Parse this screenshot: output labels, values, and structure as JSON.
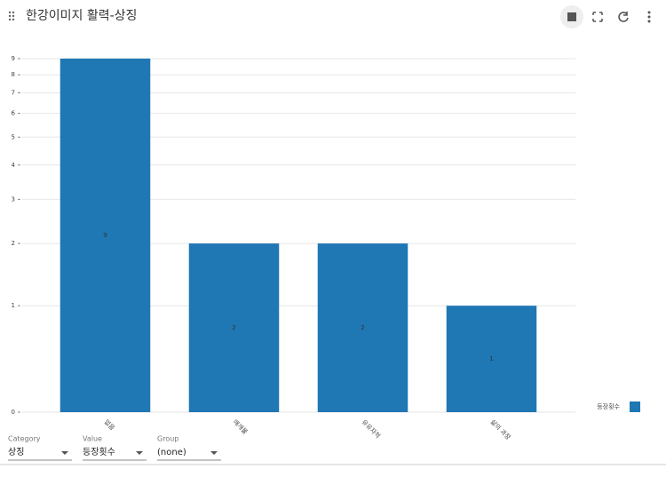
{
  "header": {
    "title": "한강이미지 활력-상징"
  },
  "chart_data": {
    "type": "bar",
    "categories": [
      "없음",
      "매개물",
      "유유자적",
      "삶의 과정"
    ],
    "series": [
      {
        "name": "등장횟수",
        "color": "#1f77b4",
        "values": [
          9,
          2,
          2,
          1
        ]
      }
    ],
    "ylim": [
      0,
      9
    ],
    "yticks": [
      0,
      1,
      2,
      3,
      4,
      5,
      6,
      7,
      8,
      9
    ],
    "yscale": "symlog",
    "grid": true,
    "legend": "right",
    "data_labels": true
  },
  "controls": [
    {
      "label": "Category",
      "value": "상징"
    },
    {
      "label": "Value",
      "value": "등장횟수"
    },
    {
      "label": "Group",
      "value": "(none)"
    }
  ]
}
